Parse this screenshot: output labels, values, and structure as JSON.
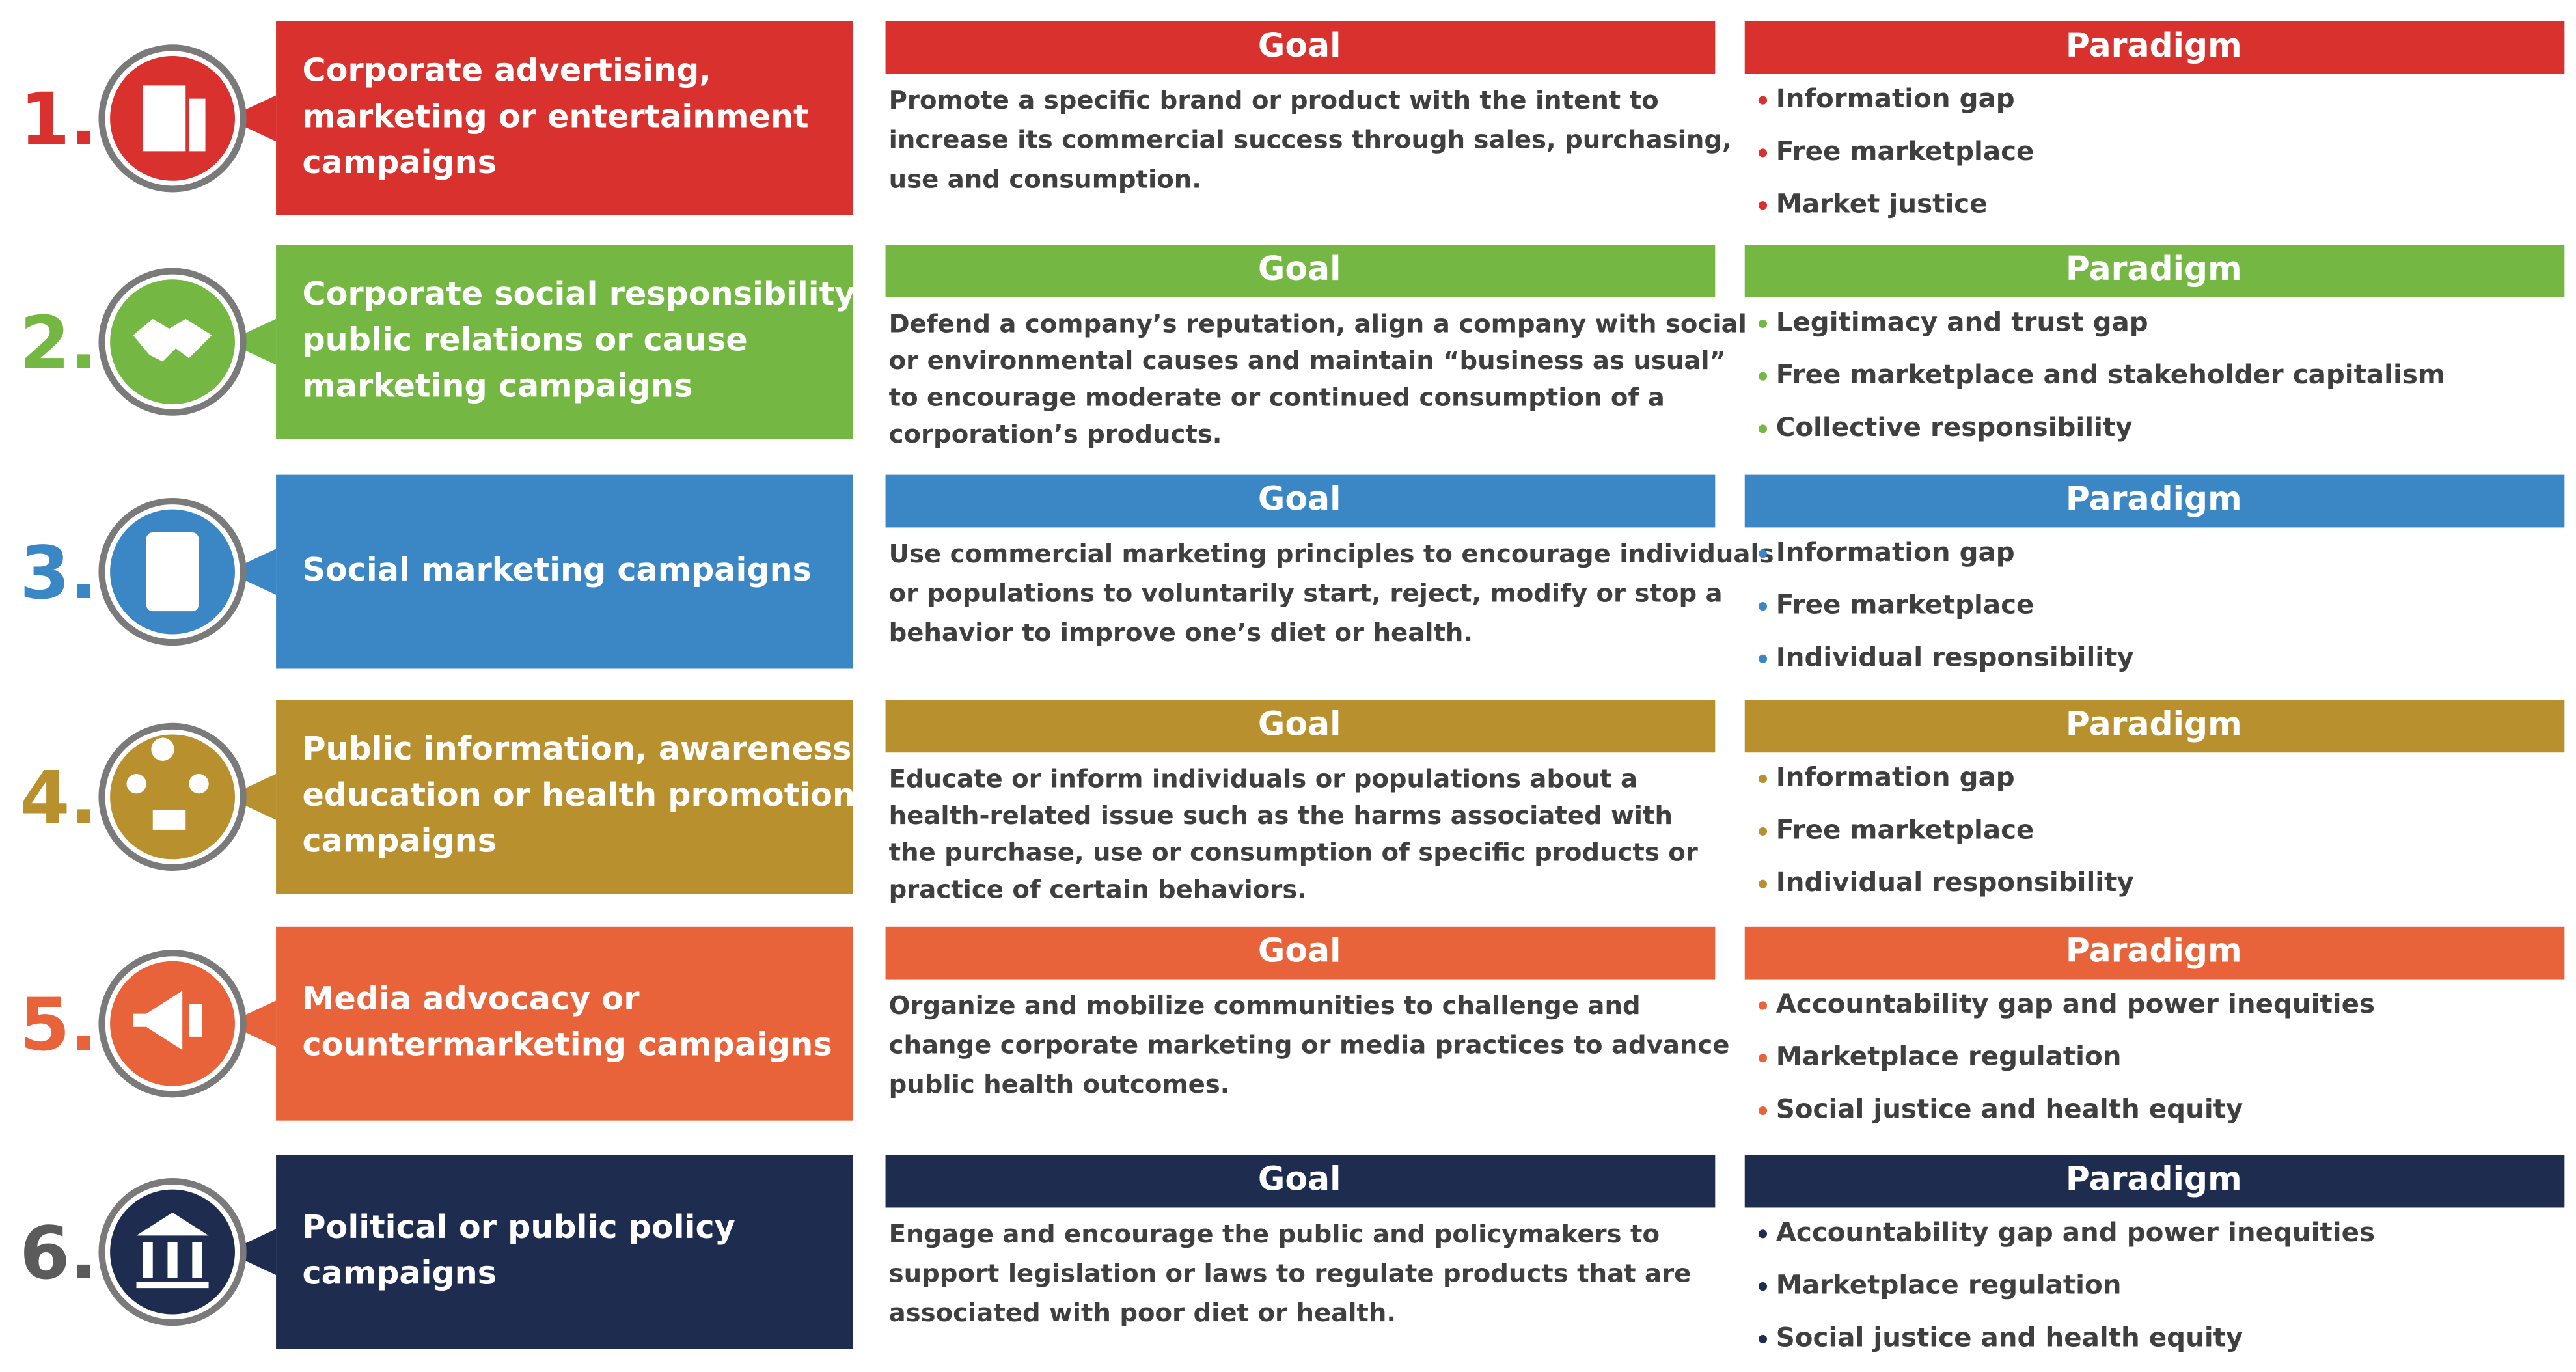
{
  "rows": [
    {
      "number": "1.",
      "color": "#d8312e",
      "number_color": "#d8312e",
      "title": [
        "Corporate advertising,",
        "marketing or entertainment",
        "campaigns"
      ],
      "goal_header": "Goal",
      "goal": [
        "Promote a specific brand or product with the intent to",
        "increase its commercial success through sales, purchasing,",
        "use and consumption."
      ],
      "paradigm_header": "Paradigm",
      "paradigm": [
        "Information gap",
        "Free marketplace",
        "Market justice"
      ]
    },
    {
      "number": "2.",
      "color": "#74b843",
      "number_color": "#74b843",
      "title": [
        "Corporate social responsibility,",
        "public relations or cause",
        "marketing campaigns"
      ],
      "goal_header": "Goal",
      "goal": [
        "Defend a company’s reputation, align a company with social",
        "or environmental causes and maintain “business as usual”",
        "to encourage moderate or continued consumption of a",
        "corporation’s products."
      ],
      "paradigm_header": "Paradigm",
      "paradigm": [
        "Legitimacy and trust gap",
        "Free marketplace and stakeholder capitalism",
        "Collective responsibility"
      ]
    },
    {
      "number": "3.",
      "color": "#3b86c5",
      "number_color": "#3b86c5",
      "title": [
        "Social marketing campaigns"
      ],
      "goal_header": "Goal",
      "goal": [
        "Use commercial marketing principles to encourage individuals",
        "or populations to voluntarily start, reject, modify or stop a",
        "behavior to improve one’s diet or health."
      ],
      "paradigm_header": "Paradigm",
      "paradigm": [
        "Information gap",
        "Free marketplace",
        "Individual responsibility"
      ]
    },
    {
      "number": "4.",
      "color": "#b8902d",
      "number_color": "#b8902d",
      "title": [
        "Public information, awareness,",
        "education or health promotion",
        "campaigns"
      ],
      "goal_header": "Goal",
      "goal": [
        "Educate or inform individuals or populations about a",
        "health-related issue such as the harms associated with",
        "the purchase, use or consumption of specific products or",
        "practice of certain behaviors."
      ],
      "paradigm_header": "Paradigm",
      "paradigm": [
        "Information gap",
        "Free marketplace",
        "Individual responsibility"
      ]
    },
    {
      "number": "5.",
      "color": "#e8623a",
      "number_color": "#e8623a",
      "title": [
        "Media advocacy or",
        "countermarketing campaigns"
      ],
      "goal_header": "Goal",
      "goal": [
        "Organize and mobilize communities to challenge and",
        "change corporate marketing or media  practices to advance",
        "public health outcomes."
      ],
      "paradigm_header": "Paradigm",
      "paradigm": [
        "Accountability gap and power inequities",
        "Marketplace regulation",
        "Social justice and health equity"
      ]
    },
    {
      "number": "6.",
      "color": "#1e2c50",
      "number_color": "#5b5b5b",
      "title": [
        "Political or public policy",
        "campaigns"
      ],
      "goal_header": "Goal",
      "goal": [
        "Engage and encourage the public and policymakers to",
        "support legislation or laws to regulate products that are",
        "associated with poor diet or health."
      ],
      "paradigm_header": "Paradigm",
      "paradigm": [
        "Accountability gap and power inequities",
        "Marketplace regulation",
        "Social justice and health equity"
      ]
    }
  ]
}
